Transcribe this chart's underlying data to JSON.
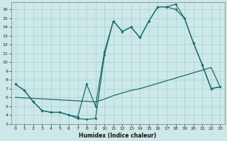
{
  "xlabel": "Humidex (Indice chaleur)",
  "bg_color": "#cce8e8",
  "line_color": "#1a6b6b",
  "grid_color": "#aad0d0",
  "xlim": [
    -0.5,
    23.5
  ],
  "ylim": [
    3,
    16.8
  ],
  "yticks": [
    3,
    4,
    5,
    6,
    7,
    8,
    9,
    10,
    11,
    12,
    13,
    14,
    15,
    16
  ],
  "xticks": [
    0,
    1,
    2,
    3,
    4,
    5,
    6,
    7,
    8,
    9,
    10,
    11,
    12,
    13,
    14,
    15,
    16,
    17,
    18,
    19,
    20,
    21,
    22,
    23
  ],
  "line1_x": [
    0,
    1,
    2,
    3,
    4,
    5,
    6,
    7,
    8,
    9,
    10,
    11,
    12,
    13,
    14,
    15,
    16,
    17,
    18,
    19,
    20,
    21,
    22,
    23
  ],
  "line1_y": [
    7.5,
    6.8,
    5.5,
    4.5,
    4.3,
    4.3,
    4.0,
    3.6,
    3.5,
    3.6,
    10.8,
    14.7,
    13.5,
    14.0,
    12.8,
    14.7,
    16.3,
    16.3,
    16.6,
    15.0,
    12.2,
    9.7,
    7.0,
    7.2
  ],
  "line2_x": [
    0,
    1,
    2,
    3,
    4,
    5,
    6,
    7,
    8,
    9,
    10,
    11,
    12,
    13,
    14,
    15,
    16,
    17,
    18,
    19,
    20,
    21,
    22,
    23
  ],
  "line2_y": [
    7.5,
    6.8,
    5.5,
    4.5,
    4.3,
    4.3,
    4.0,
    3.8,
    7.5,
    5.0,
    11.2,
    14.7,
    13.5,
    14.0,
    12.8,
    14.7,
    16.3,
    16.3,
    16.0,
    15.0,
    12.2,
    9.7,
    7.0,
    7.2
  ],
  "line3_x": [
    0,
    9,
    10,
    11,
    12,
    13,
    14,
    15,
    16,
    17,
    18,
    19,
    20,
    21,
    22,
    23
  ],
  "line3_y": [
    6.0,
    5.5,
    5.8,
    6.2,
    6.5,
    6.8,
    7.0,
    7.3,
    7.6,
    7.9,
    8.2,
    8.5,
    8.8,
    9.1,
    9.4,
    7.2
  ]
}
